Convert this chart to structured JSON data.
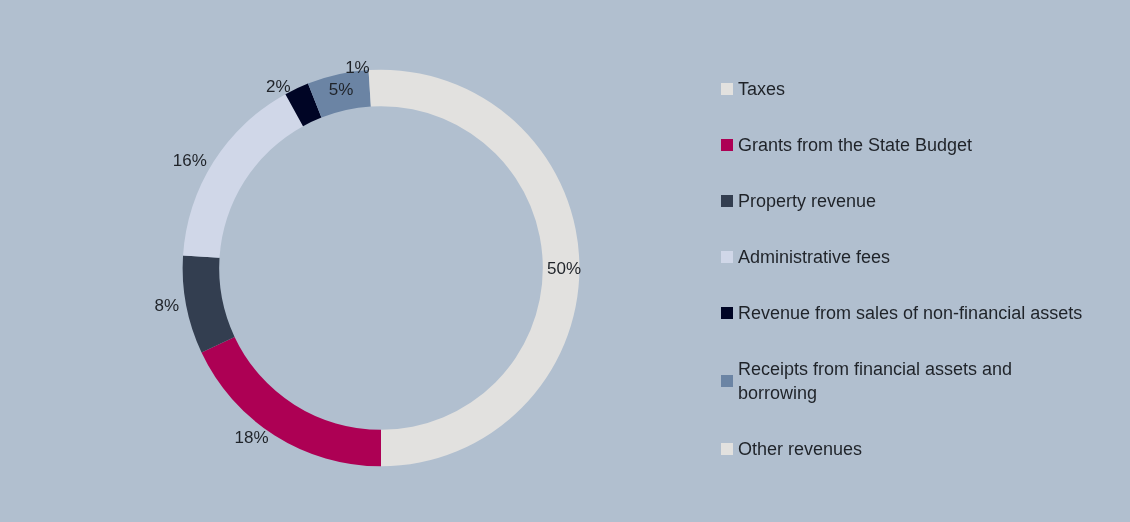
{
  "chart_data": {
    "type": "donut",
    "categories": [
      "Taxes",
      "Grants from the State Budget",
      "Property revenue",
      "Administrative fees",
      "Revenue from sales of non-financial assets",
      "Receipts from financial assets and borrowing",
      "Other revenues"
    ],
    "values": [
      50,
      18,
      8,
      16,
      2,
      5,
      1
    ],
    "value_labels": [
      "50%",
      "18%",
      "8%",
      "16%",
      "2%",
      "5%",
      "1%"
    ],
    "colors": [
      "#e2e1df",
      "#ad0054",
      "#333e50",
      "#d0d7e8",
      "#000525",
      "#6b84a4",
      "#e2e1df"
    ],
    "legend": "right"
  }
}
